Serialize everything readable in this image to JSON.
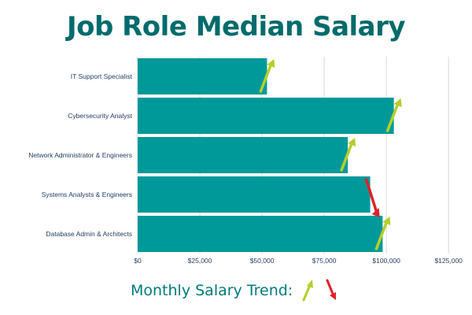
{
  "chart_data": {
    "type": "bar",
    "orientation": "horizontal",
    "title": "Job Role Median Salary",
    "categories": [
      "IT Support Specialist",
      "Cybersecurity Analyst",
      "Network Administrator & Engineers",
      "Systems Analysts & Engineers",
      "Database Admin & Architects"
    ],
    "values": [
      52000,
      103000,
      84500,
      93500,
      98500
    ],
    "trend": [
      "up",
      "up",
      "up",
      "down",
      "up"
    ],
    "xlim": [
      0,
      130000
    ],
    "xticks": [
      0,
      25000,
      50000,
      75000,
      100000,
      125000
    ],
    "xtick_labels": [
      "$0",
      "$25,000",
      "$50,000",
      "$75,000",
      "$100,000",
      "$125,000"
    ],
    "grid": true,
    "bar_color": "#00999a",
    "up_color": "#b5cf2a",
    "down_color": "#e0202a"
  },
  "legend": {
    "label": "Monthly Salary Trend:",
    "items": [
      "up",
      "down"
    ]
  }
}
